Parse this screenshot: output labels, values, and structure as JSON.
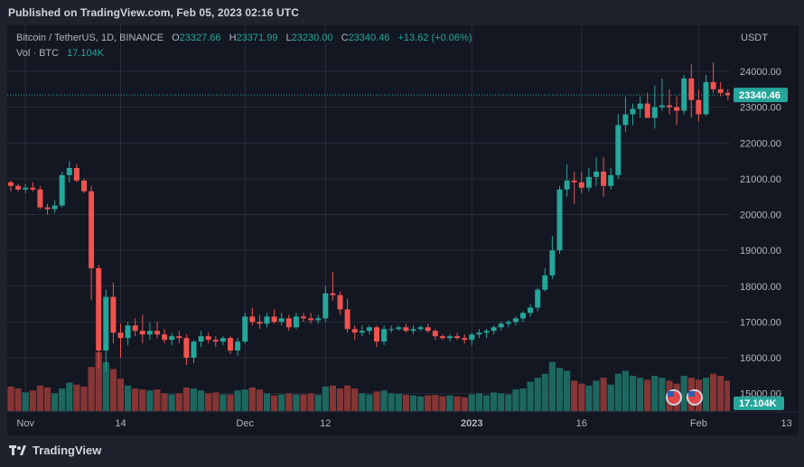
{
  "header": {
    "published": "Published on TradingView.com, Feb 05, 2023 02:16 UTC"
  },
  "legend": {
    "symbol": "Bitcoin / TetherUS, 1D, BINANCE",
    "o_label": "O",
    "o": "23327.66",
    "h_label": "H",
    "h": "23371.99",
    "l_label": "L",
    "l": "23230.00",
    "c_label": "C",
    "c": "23340.46",
    "change": "+13.62 (+0.06%)",
    "vol_label": "Vol · BTC",
    "vol": "17.104K"
  },
  "axis_unit": "USDT",
  "footer": {
    "brand": "TradingView"
  },
  "colors": {
    "up": "#26a69a",
    "down": "#ef5350",
    "bg": "#131722",
    "grid": "#2a2e39"
  },
  "chart_data": {
    "type": "candlestick",
    "title": "Bitcoin / TetherUS, 1D, BINANCE",
    "ylabel": "USDT",
    "ylim": [
      14800,
      24800
    ],
    "y_ticks": [
      "24000.00",
      "23000.00",
      "22000.00",
      "21000.00",
      "20000.00",
      "19000.00",
      "18000.00",
      "17000.00",
      "16000.00",
      "15000.00"
    ],
    "y_tick_values": [
      24000,
      23000,
      22000,
      21000,
      20000,
      19000,
      18000,
      17000,
      16000,
      15000
    ],
    "x_ticks": [
      {
        "label": "Nov",
        "index": 2
      },
      {
        "label": "14",
        "index": 15
      },
      {
        "label": "Dec",
        "index": 32
      },
      {
        "label": "12",
        "index": 43
      },
      {
        "label": "2023",
        "index": 63
      },
      {
        "label": "16",
        "index": 78
      },
      {
        "label": "Feb",
        "index": 94
      },
      {
        "label": "13",
        "index": 106
      }
    ],
    "last_price": 23340.46,
    "last_price_label": "23340.46",
    "last_volume_label": "17.104K",
    "candles": [
      [
        20900,
        20950,
        20650,
        20800,
        5
      ],
      [
        20800,
        20850,
        20650,
        20700,
        4.6
      ],
      [
        20700,
        20850,
        20600,
        20750,
        3.8
      ],
      [
        20750,
        20900,
        20650,
        20700,
        4.2
      ],
      [
        20700,
        20800,
        20150,
        20200,
        5.2
      ],
      [
        20200,
        20300,
        20000,
        20150,
        4.8
      ],
      [
        20150,
        20400,
        20050,
        20250,
        3.6
      ],
      [
        20250,
        21200,
        20200,
        21100,
        4.6
      ],
      [
        21100,
        21500,
        20900,
        21300,
        5.8
      ],
      [
        21300,
        21400,
        20900,
        20950,
        5.4
      ],
      [
        20950,
        21000,
        20600,
        20650,
        5
      ],
      [
        20650,
        20800,
        17600,
        18500,
        9
      ],
      [
        18500,
        18600,
        15700,
        16200,
        12
      ],
      [
        16200,
        17900,
        15600,
        17700,
        10
      ],
      [
        17700,
        18100,
        16400,
        16700,
        8.6
      ],
      [
        16700,
        16950,
        16000,
        16550,
        6.6
      ],
      [
        16550,
        17000,
        16350,
        16900,
        5.2
      ],
      [
        16900,
        17100,
        16600,
        16750,
        4.6
      ],
      [
        16750,
        17200,
        16400,
        16650,
        4.4
      ],
      [
        16650,
        17000,
        16500,
        16750,
        4.2
      ],
      [
        16750,
        17000,
        16550,
        16650,
        4.4
      ],
      [
        16650,
        16800,
        16400,
        16500,
        3.6
      ],
      [
        16500,
        16700,
        16350,
        16600,
        3.4
      ],
      [
        16600,
        16750,
        16400,
        16550,
        3.6
      ],
      [
        16550,
        16650,
        15800,
        16000,
        4.8
      ],
      [
        16000,
        16500,
        15850,
        16450,
        4.6
      ],
      [
        16450,
        16750,
        16300,
        16600,
        4.2
      ],
      [
        16600,
        16700,
        16400,
        16500,
        3.6
      ],
      [
        16500,
        16600,
        16300,
        16450,
        3.8
      ],
      [
        16450,
        16600,
        16350,
        16550,
        3.4
      ],
      [
        16550,
        16600,
        16100,
        16200,
        3.4
      ],
      [
        16200,
        16550,
        16050,
        16450,
        4.2
      ],
      [
        16450,
        17250,
        16400,
        17150,
        4.4
      ],
      [
        17150,
        17400,
        16900,
        17000,
        4.8
      ],
      [
        17000,
        17200,
        16800,
        16950,
        4.4
      ],
      [
        16950,
        17250,
        16850,
        17150,
        3.6
      ],
      [
        17150,
        17350,
        16950,
        17000,
        3.2
      ],
      [
        17000,
        17250,
        16900,
        17100,
        3.4
      ],
      [
        17100,
        17200,
        16750,
        16850,
        3.6
      ],
      [
        16850,
        17250,
        16800,
        17150,
        3.4
      ],
      [
        17150,
        17250,
        17000,
        17100,
        3.4
      ],
      [
        17100,
        17250,
        16950,
        17050,
        3.6
      ],
      [
        17050,
        17200,
        16950,
        17100,
        3.3
      ],
      [
        17100,
        18000,
        17000,
        17800,
        5
      ],
      [
        17800,
        18400,
        17600,
        17750,
        5.2
      ],
      [
        17750,
        17850,
        17200,
        17350,
        4.6
      ],
      [
        17350,
        17650,
        16700,
        16800,
        5.2
      ],
      [
        16800,
        16900,
        16500,
        16700,
        4.6
      ],
      [
        16700,
        16900,
        16600,
        16750,
        3.6
      ],
      [
        16750,
        16900,
        16650,
        16850,
        3.4
      ],
      [
        16850,
        16900,
        16300,
        16450,
        4
      ],
      [
        16450,
        16900,
        16350,
        16800,
        4.2
      ],
      [
        16800,
        16900,
        16700,
        16800,
        3.6
      ],
      [
        16800,
        16900,
        16750,
        16850,
        3.5
      ],
      [
        16850,
        16950,
        16700,
        16750,
        3.3
      ],
      [
        16750,
        16900,
        16650,
        16800,
        3.2
      ],
      [
        16800,
        16900,
        16750,
        16850,
        3
      ],
      [
        16850,
        16950,
        16700,
        16750,
        3.2
      ],
      [
        16750,
        16800,
        16500,
        16600,
        3.3
      ],
      [
        16600,
        16650,
        16500,
        16550,
        3
      ],
      [
        16550,
        16650,
        16450,
        16600,
        3.2
      ],
      [
        16600,
        16700,
        16500,
        16550,
        3
      ],
      [
        16550,
        16650,
        16400,
        16500,
        2.8
      ],
      [
        16500,
        16700,
        16350,
        16650,
        3.4
      ],
      [
        16650,
        16800,
        16550,
        16700,
        3.6
      ],
      [
        16700,
        16800,
        16550,
        16750,
        3.2
      ],
      [
        16750,
        16900,
        16650,
        16850,
        3.8
      ],
      [
        16850,
        17000,
        16750,
        16950,
        3.6
      ],
      [
        16950,
        17050,
        16850,
        17000,
        3.4
      ],
      [
        17000,
        17150,
        16900,
        17100,
        4.4
      ],
      [
        17100,
        17300,
        17000,
        17250,
        4.6
      ],
      [
        17250,
        17500,
        17150,
        17400,
        6
      ],
      [
        17400,
        17950,
        17300,
        17900,
        6.8
      ],
      [
        17900,
        18500,
        17850,
        18300,
        7.6
      ],
      [
        18300,
        19400,
        18200,
        19000,
        10
      ],
      [
        19000,
        20800,
        18900,
        20700,
        8.8
      ],
      [
        20700,
        21400,
        20500,
        20950,
        8.2
      ],
      [
        20950,
        21200,
        20300,
        20900,
        6.2
      ],
      [
        20900,
        21200,
        20600,
        20750,
        5.6
      ],
      [
        20750,
        21300,
        20650,
        21050,
        5.2
      ],
      [
        21050,
        21600,
        20800,
        21200,
        6.2
      ],
      [
        21200,
        21600,
        20500,
        20800,
        6.8
      ],
      [
        20800,
        21300,
        20700,
        21100,
        5.4
      ],
      [
        21100,
        22800,
        21000,
        22500,
        7.6
      ],
      [
        22500,
        23300,
        22300,
        22800,
        8.2
      ],
      [
        22800,
        23100,
        22500,
        22950,
        7.2
      ],
      [
        22950,
        23300,
        22700,
        23100,
        6.8
      ],
      [
        23100,
        23400,
        22800,
        22700,
        6.4
      ],
      [
        22700,
        23600,
        22400,
        23000,
        7.2
      ],
      [
        23000,
        23800,
        22900,
        23050,
        6.8
      ],
      [
        23050,
        23500,
        22800,
        23000,
        6.2
      ],
      [
        23000,
        23300,
        22500,
        22900,
        5.6
      ],
      [
        22900,
        23900,
        22800,
        23800,
        7.2
      ],
      [
        23800,
        24200,
        22700,
        23200,
        6.8
      ],
      [
        23200,
        23500,
        22600,
        22800,
        6.4
      ],
      [
        22800,
        23900,
        22750,
        23700,
        6.8
      ],
      [
        23700,
        24250,
        23400,
        23500,
        7.6
      ],
      [
        23500,
        23700,
        23300,
        23400,
        7.2
      ],
      [
        23400,
        23500,
        23200,
        23330,
        6.2
      ],
      [
        23327.66,
        23371.99,
        23230.0,
        23340.46,
        1.2
      ]
    ]
  }
}
